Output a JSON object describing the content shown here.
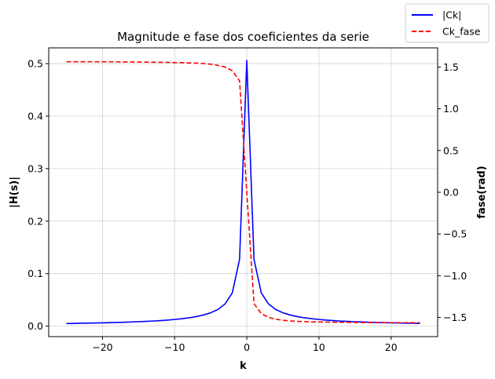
{
  "chart_data": {
    "type": "line",
    "title": "Magnitude e fase dos coeficientes da serie",
    "xlabel": "k",
    "ylabel": "|H(s)|",
    "y2label": "fase(rad)",
    "xlim": [
      -27.45,
      26.45
    ],
    "ylim": [
      -0.02,
      0.53
    ],
    "y2lim": [
      -1.73,
      1.73
    ],
    "xticks": [
      -20,
      -10,
      0,
      10,
      20
    ],
    "xtick_labels": [
      "−20",
      "−10",
      "0",
      "10",
      "20"
    ],
    "yticks": [
      0.0,
      0.1,
      0.2,
      0.3,
      0.4,
      0.5
    ],
    "ytick_labels": [
      "0.0",
      "0.1",
      "0.2",
      "0.3",
      "0.4",
      "0.5"
    ],
    "y2ticks": [
      -1.5,
      -1.0,
      -0.5,
      0.0,
      0.5,
      1.0,
      1.5
    ],
    "y2tick_labels": [
      "−1.5",
      "−1.0",
      "−0.5",
      "0.0",
      "0.5",
      "1.0",
      "1.5"
    ],
    "grid": true,
    "legend_position": "top-right",
    "series": [
      {
        "name": "|Ck|",
        "axis": "left",
        "color": "#0000ff",
        "style": "solid",
        "x": [
          -25,
          -24,
          -23,
          -22,
          -21,
          -20,
          -19,
          -18,
          -17,
          -16,
          -15,
          -14,
          -13,
          -12,
          -11,
          -10,
          -9,
          -8,
          -7,
          -6,
          -5,
          -4,
          -3,
          -2,
          -1,
          0,
          1,
          2,
          3,
          4,
          5,
          6,
          7,
          8,
          9,
          10,
          11,
          12,
          13,
          14,
          15,
          16,
          17,
          18,
          19,
          20,
          21,
          22,
          23,
          24
        ],
        "y": [
          0.005,
          0.0052,
          0.0055,
          0.0057,
          0.006,
          0.0063,
          0.0066,
          0.007,
          0.0074,
          0.0079,
          0.0084,
          0.009,
          0.0097,
          0.0105,
          0.0115,
          0.0127,
          0.0141,
          0.0159,
          0.0182,
          0.0212,
          0.0255,
          0.0318,
          0.0424,
          0.0636,
          0.1273,
          0.506,
          0.1273,
          0.0636,
          0.0424,
          0.0318,
          0.0255,
          0.0212,
          0.0182,
          0.0159,
          0.0141,
          0.0127,
          0.0115,
          0.0105,
          0.0097,
          0.009,
          0.0084,
          0.0079,
          0.0074,
          0.007,
          0.0066,
          0.0063,
          0.006,
          0.0057,
          0.0055,
          0.0052
        ]
      },
      {
        "name": "Ck_fase",
        "axis": "right",
        "color": "#ff0000",
        "style": "dashed",
        "x": [
          -25,
          -24,
          -23,
          -22,
          -21,
          -20,
          -19,
          -18,
          -17,
          -16,
          -15,
          -14,
          -13,
          -12,
          -11,
          -10,
          -9,
          -8,
          -7,
          -6,
          -5,
          -4,
          -3,
          -2,
          -1,
          0,
          1,
          2,
          3,
          4,
          5,
          6,
          7,
          8,
          9,
          10,
          11,
          12,
          13,
          14,
          15,
          16,
          17,
          18,
          19,
          20,
          21,
          22,
          23,
          24
        ],
        "y": [
          1.564,
          1.564,
          1.564,
          1.563,
          1.563,
          1.563,
          1.562,
          1.562,
          1.561,
          1.561,
          1.56,
          1.559,
          1.558,
          1.557,
          1.556,
          1.554,
          1.553,
          1.55,
          1.547,
          1.542,
          1.534,
          1.521,
          1.499,
          1.454,
          1.334,
          0.0,
          -1.334,
          -1.454,
          -1.499,
          -1.521,
          -1.534,
          -1.542,
          -1.547,
          -1.55,
          -1.553,
          -1.554,
          -1.556,
          -1.557,
          -1.558,
          -1.559,
          -1.56,
          -1.561,
          -1.561,
          -1.562,
          -1.562,
          -1.563,
          -1.563,
          -1.563,
          -1.564,
          -1.564
        ]
      }
    ]
  }
}
